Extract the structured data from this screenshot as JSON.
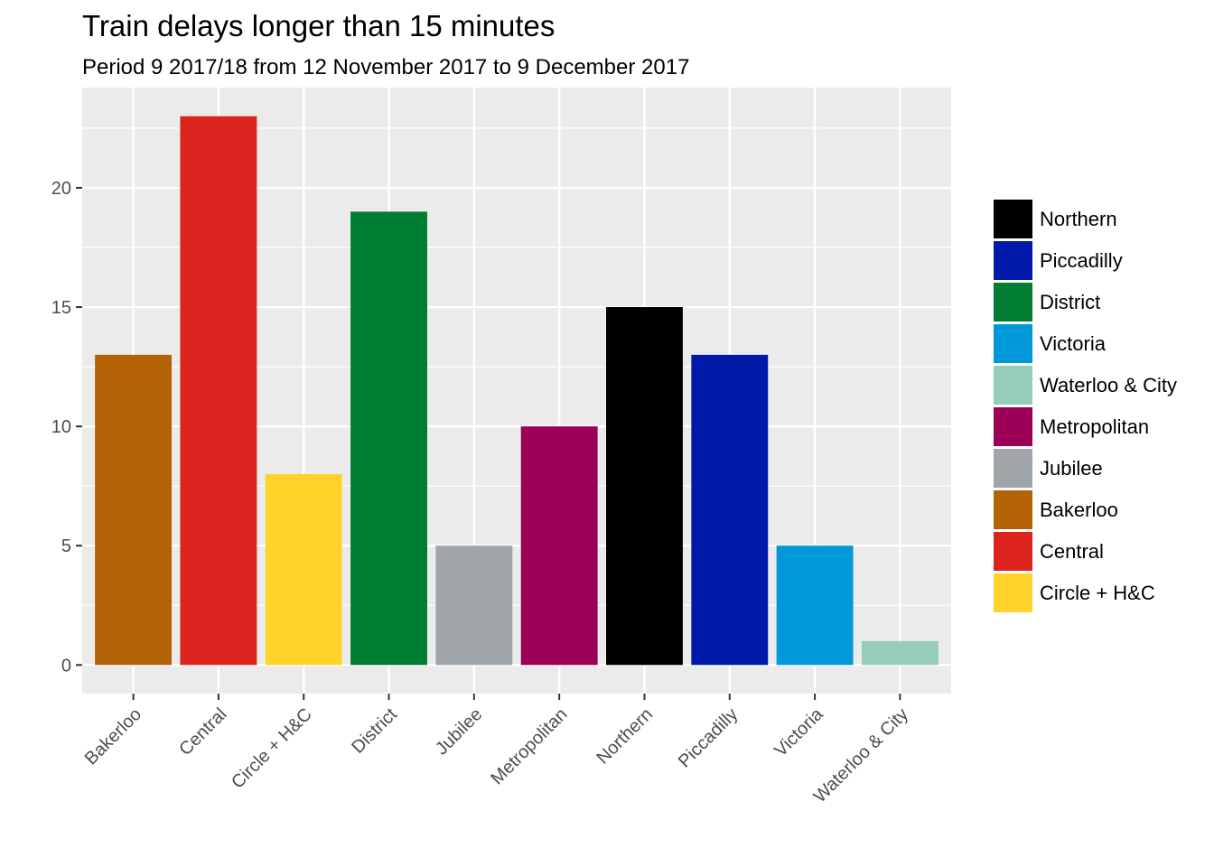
{
  "chart_data": {
    "type": "bar",
    "title": "Train delays longer than 15 minutes",
    "subtitle": "Period 9 2017/18 from 12 November 2017 to 9 December 2017",
    "xlabel": "",
    "ylabel": "",
    "categories": [
      "Bakerloo",
      "Central",
      "Circle + H&C",
      "District",
      "Jubilee",
      "Metropolitan",
      "Northern",
      "Piccadilly",
      "Victoria",
      "Waterloo & City"
    ],
    "values": [
      13,
      23,
      8,
      19,
      5,
      10,
      15,
      13,
      5,
      1
    ],
    "colors": [
      "#B36305",
      "#DC241F",
      "#FFD329",
      "#007D32",
      "#A0A5A9",
      "#9B0056",
      "#000000",
      "#0019A8",
      "#0098D8",
      "#95CDBA"
    ],
    "ylim": [
      -1.2,
      24.2
    ],
    "yticks": [
      0,
      5,
      10,
      15,
      20
    ],
    "grid": true,
    "legend": {
      "placement": "right",
      "entries": [
        {
          "label": "Northern",
          "color": "#000000"
        },
        {
          "label": "Piccadilly",
          "color": "#0019A8"
        },
        {
          "label": "District",
          "color": "#007D32"
        },
        {
          "label": "Victoria",
          "color": "#0098D8"
        },
        {
          "label": "Waterloo & City",
          "color": "#95CDBA"
        },
        {
          "label": "Metropolitan",
          "color": "#9B0056"
        },
        {
          "label": "Jubilee",
          "color": "#A0A5A9"
        },
        {
          "label": "Bakerloo",
          "color": "#B36305"
        },
        {
          "label": "Central",
          "color": "#DC241F"
        },
        {
          "label": "Circle + H&C",
          "color": "#FFD329"
        }
      ]
    }
  }
}
